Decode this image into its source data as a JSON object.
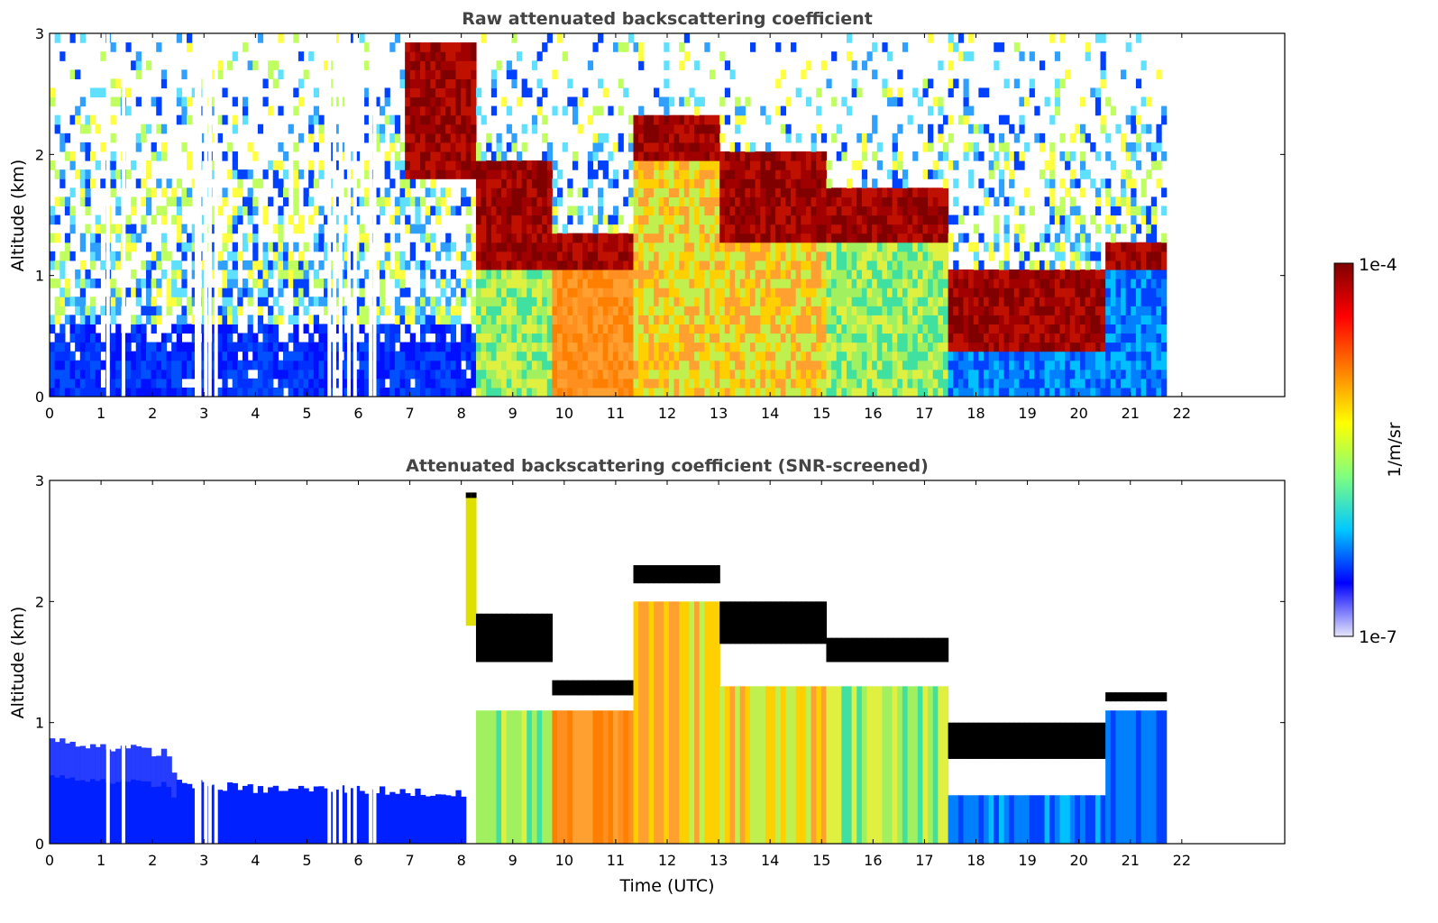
{
  "chart_data": [
    {
      "type": "heatmap",
      "title": "Raw attenuated backscattering coefficient",
      "xlabel": "",
      "ylabel": "Altitude (km)",
      "xlim": [
        0,
        24
      ],
      "ylim": [
        0,
        3
      ],
      "xticks": [
        "0",
        "1",
        "2",
        "3",
        "4",
        "5",
        "6",
        "7",
        "8",
        "9",
        "10",
        "11",
        "12",
        "13",
        "14",
        "15",
        "16",
        "17",
        "18",
        "19",
        "20",
        "21",
        "22"
      ],
      "yticks": [
        "0",
        "1",
        "2",
        "3"
      ],
      "data_extent_hours": [
        0,
        21.7
      ],
      "missing_profiles_hours": [
        1.1,
        1.4,
        2.82,
        2.88,
        3.0,
        3.08,
        3.2,
        5.4,
        5.5,
        5.62,
        5.78,
        5.9,
        6.2,
        6.28
      ],
      "layers": [
        {
          "x_start": 6.9,
          "x_end": 8.2,
          "alt_top": 2.9,
          "alt_bottom": 1.8,
          "level": "high"
        },
        {
          "x_start": 8.2,
          "x_end": 9.7,
          "alt_top": 1.9,
          "alt_bottom": 1.1,
          "level": "high"
        },
        {
          "x_start": 9.7,
          "x_end": 11.3,
          "alt_top": 1.35,
          "alt_bottom": 1.1,
          "level": "high"
        },
        {
          "x_start": 11.3,
          "x_end": 13.0,
          "alt_top": 2.3,
          "alt_bottom": 2.0,
          "level": "high"
        },
        {
          "x_start": 13.0,
          "x_end": 15.0,
          "alt_top": 2.0,
          "alt_bottom": 1.3,
          "level": "high"
        },
        {
          "x_start": 15.0,
          "x_end": 17.4,
          "alt_top": 1.7,
          "alt_bottom": 1.3,
          "level": "high"
        },
        {
          "x_start": 17.4,
          "x_end": 20.5,
          "alt_top": 1.0,
          "alt_bottom": 0.4,
          "level": "high"
        },
        {
          "x_start": 20.5,
          "x_end": 21.7,
          "alt_top": 1.25,
          "alt_bottom": 1.1,
          "level": "high"
        }
      ],
      "below_cloud_fill": [
        {
          "x_start": 8.2,
          "x_end": 9.7,
          "level": "moderate"
        },
        {
          "x_start": 9.7,
          "x_end": 11.3,
          "level": "elevated"
        },
        {
          "x_start": 11.3,
          "x_end": 15.0,
          "level": "moderate-elevated"
        },
        {
          "x_start": 15.0,
          "x_end": 17.4,
          "level": "moderate"
        },
        {
          "x_start": 17.4,
          "x_end": 21.7,
          "level": "low"
        }
      ]
    },
    {
      "type": "heatmap",
      "title": "Attenuated backscattering coefficient (SNR-screened)",
      "xlabel": "Time (UTC)",
      "ylabel": "Altitude (km)",
      "xlim": [
        0,
        24
      ],
      "ylim": [
        0,
        3
      ],
      "xticks": [
        "0",
        "1",
        "2",
        "3",
        "4",
        "5",
        "6",
        "7",
        "8",
        "9",
        "10",
        "11",
        "12",
        "13",
        "14",
        "15",
        "16",
        "17",
        "18",
        "19",
        "20",
        "21",
        "22"
      ],
      "yticks": [
        "0",
        "1",
        "2",
        "3"
      ],
      "data_extent_hours": [
        0,
        21.7
      ],
      "screened_boundary_layer_top_km": [
        {
          "x": 0,
          "y": 0.85
        },
        {
          "x": 2.2,
          "y": 0.75
        },
        {
          "x": 2.5,
          "y": 0.5
        },
        {
          "x": 4.0,
          "y": 0.45
        },
        {
          "x": 6.0,
          "y": 0.45
        },
        {
          "x": 8.0,
          "y": 0.4
        }
      ]
    }
  ],
  "colorbar": {
    "label": "1/m/sr",
    "max_label": "1e-4",
    "min_label": "1e-7",
    "colors": [
      "#e6e6fa",
      "#0000ff",
      "#00c8ff",
      "#7fff7f",
      "#ffff00",
      "#ff7f00",
      "#ff0000",
      "#7f0000"
    ]
  }
}
